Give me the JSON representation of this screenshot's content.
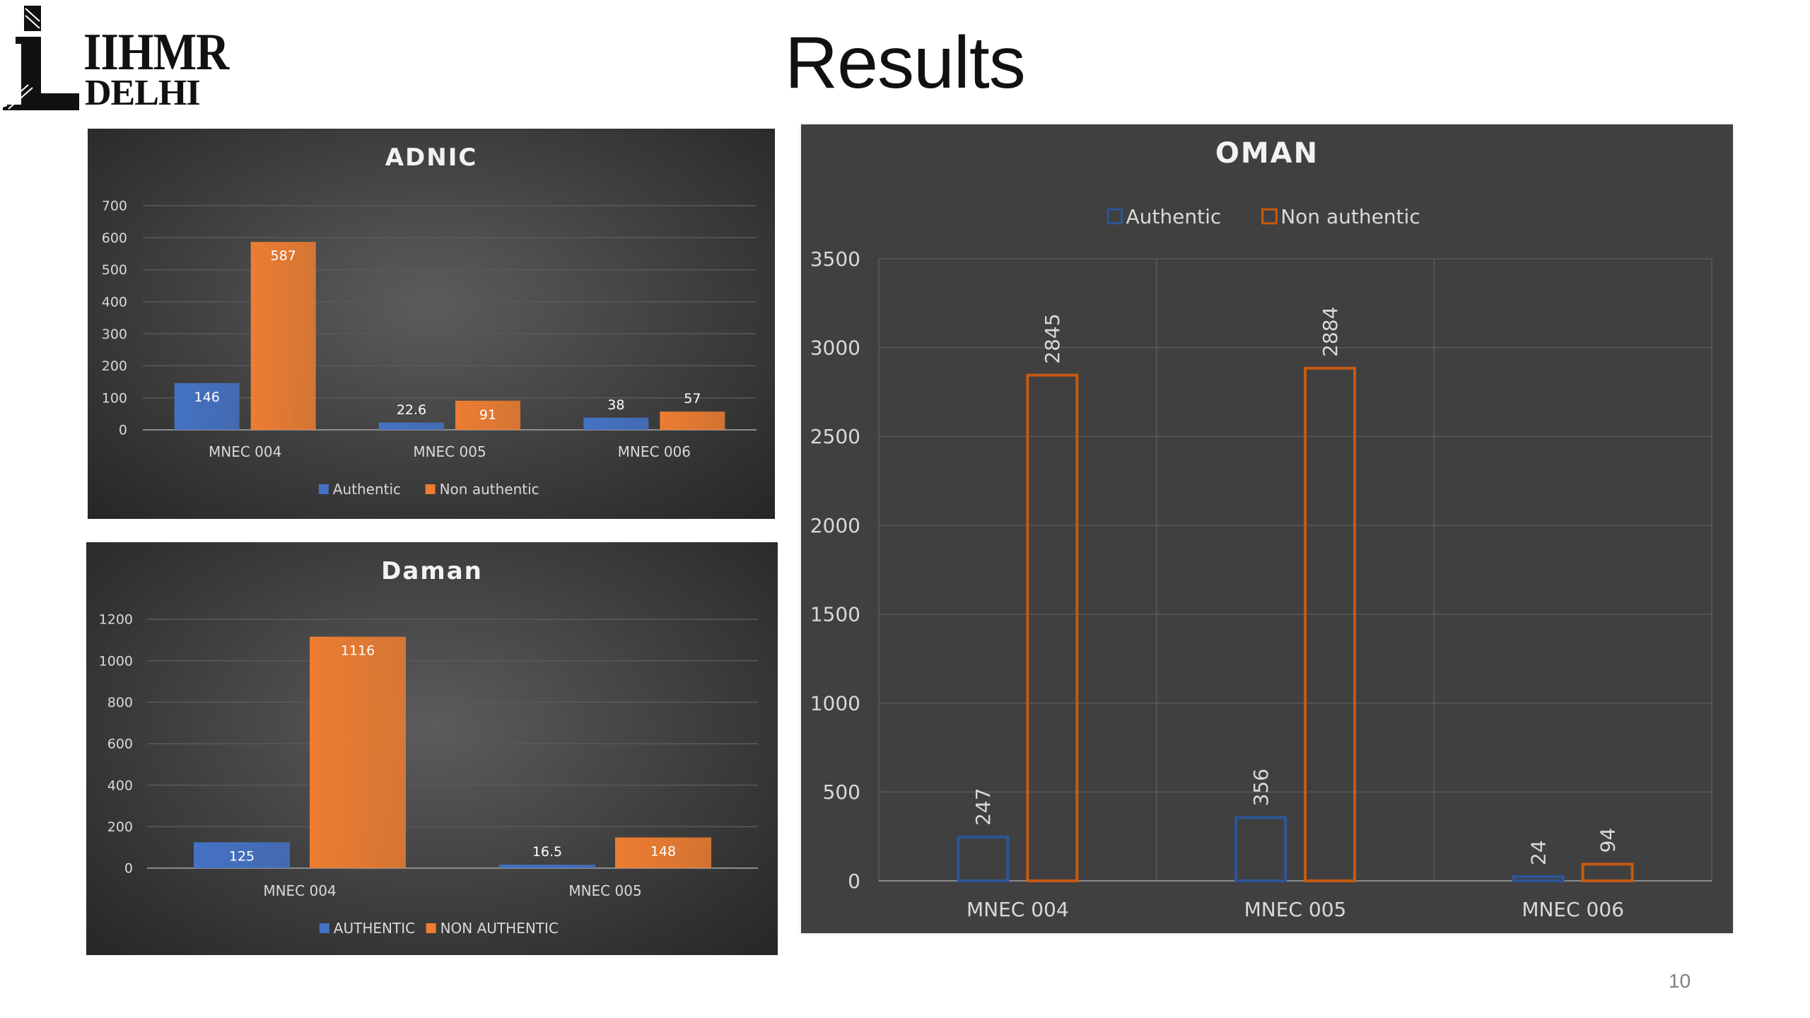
{
  "slide": {
    "title": "Results",
    "page_number": "10"
  },
  "logo": {
    "line1": "IIHMR",
    "line2": "DELHI"
  },
  "chart_data": [
    {
      "id": "adnic",
      "type": "bar",
      "title": "ADNIC",
      "categories": [
        "MNEC 004",
        "MNEC 005",
        "MNEC 006"
      ],
      "series": [
        {
          "name": "Authentic",
          "values": [
            146,
            22.6,
            38
          ],
          "labels": [
            "146",
            "22.6",
            "38"
          ],
          "color": "#4472c4"
        },
        {
          "name": "Non authentic",
          "values": [
            587,
            91,
            57
          ],
          "labels": [
            "587",
            "91",
            "57"
          ],
          "color": "#ed7d31"
        }
      ],
      "ylim": [
        0,
        700
      ],
      "yticks": [
        "0",
        "100",
        "200",
        "300",
        "400",
        "500",
        "600",
        "700"
      ],
      "legend": "bottom",
      "grid": true,
      "style": "filled"
    },
    {
      "id": "daman",
      "type": "bar",
      "title": "Daman",
      "categories": [
        "MNEC 004",
        "MNEC 005"
      ],
      "series": [
        {
          "name": "AUTHENTIC",
          "values": [
            125,
            16.5
          ],
          "labels": [
            "125",
            "16.5"
          ],
          "color": "#4472c4"
        },
        {
          "name": "NON AUTHENTIC",
          "values": [
            1116,
            148
          ],
          "labels": [
            "1116",
            "148"
          ],
          "color": "#ed7d31"
        }
      ],
      "ylim": [
        0,
        1200
      ],
      "yticks": [
        "0",
        "200",
        "400",
        "600",
        "800",
        "1000",
        "1200"
      ],
      "legend": "bottom",
      "grid": true,
      "style": "filled"
    },
    {
      "id": "oman",
      "type": "bar",
      "title": "OMAN",
      "categories": [
        "MNEC 004",
        "MNEC 005",
        "MNEC 006"
      ],
      "series": [
        {
          "name": "Authentic",
          "values": [
            247,
            356,
            24
          ],
          "labels": [
            "247",
            "356",
            "24"
          ],
          "color": "#2e5596"
        },
        {
          "name": "Non authentic",
          "values": [
            2845,
            2884,
            94
          ],
          "labels": [
            "2845",
            "2884",
            "94"
          ],
          "color": "#c55a11"
        }
      ],
      "ylim": [
        0,
        3500
      ],
      "yticks": [
        "0",
        "500",
        "1000",
        "1500",
        "2000",
        "2500",
        "3000",
        "3500"
      ],
      "legend": "top",
      "grid": true,
      "style": "outline"
    }
  ]
}
